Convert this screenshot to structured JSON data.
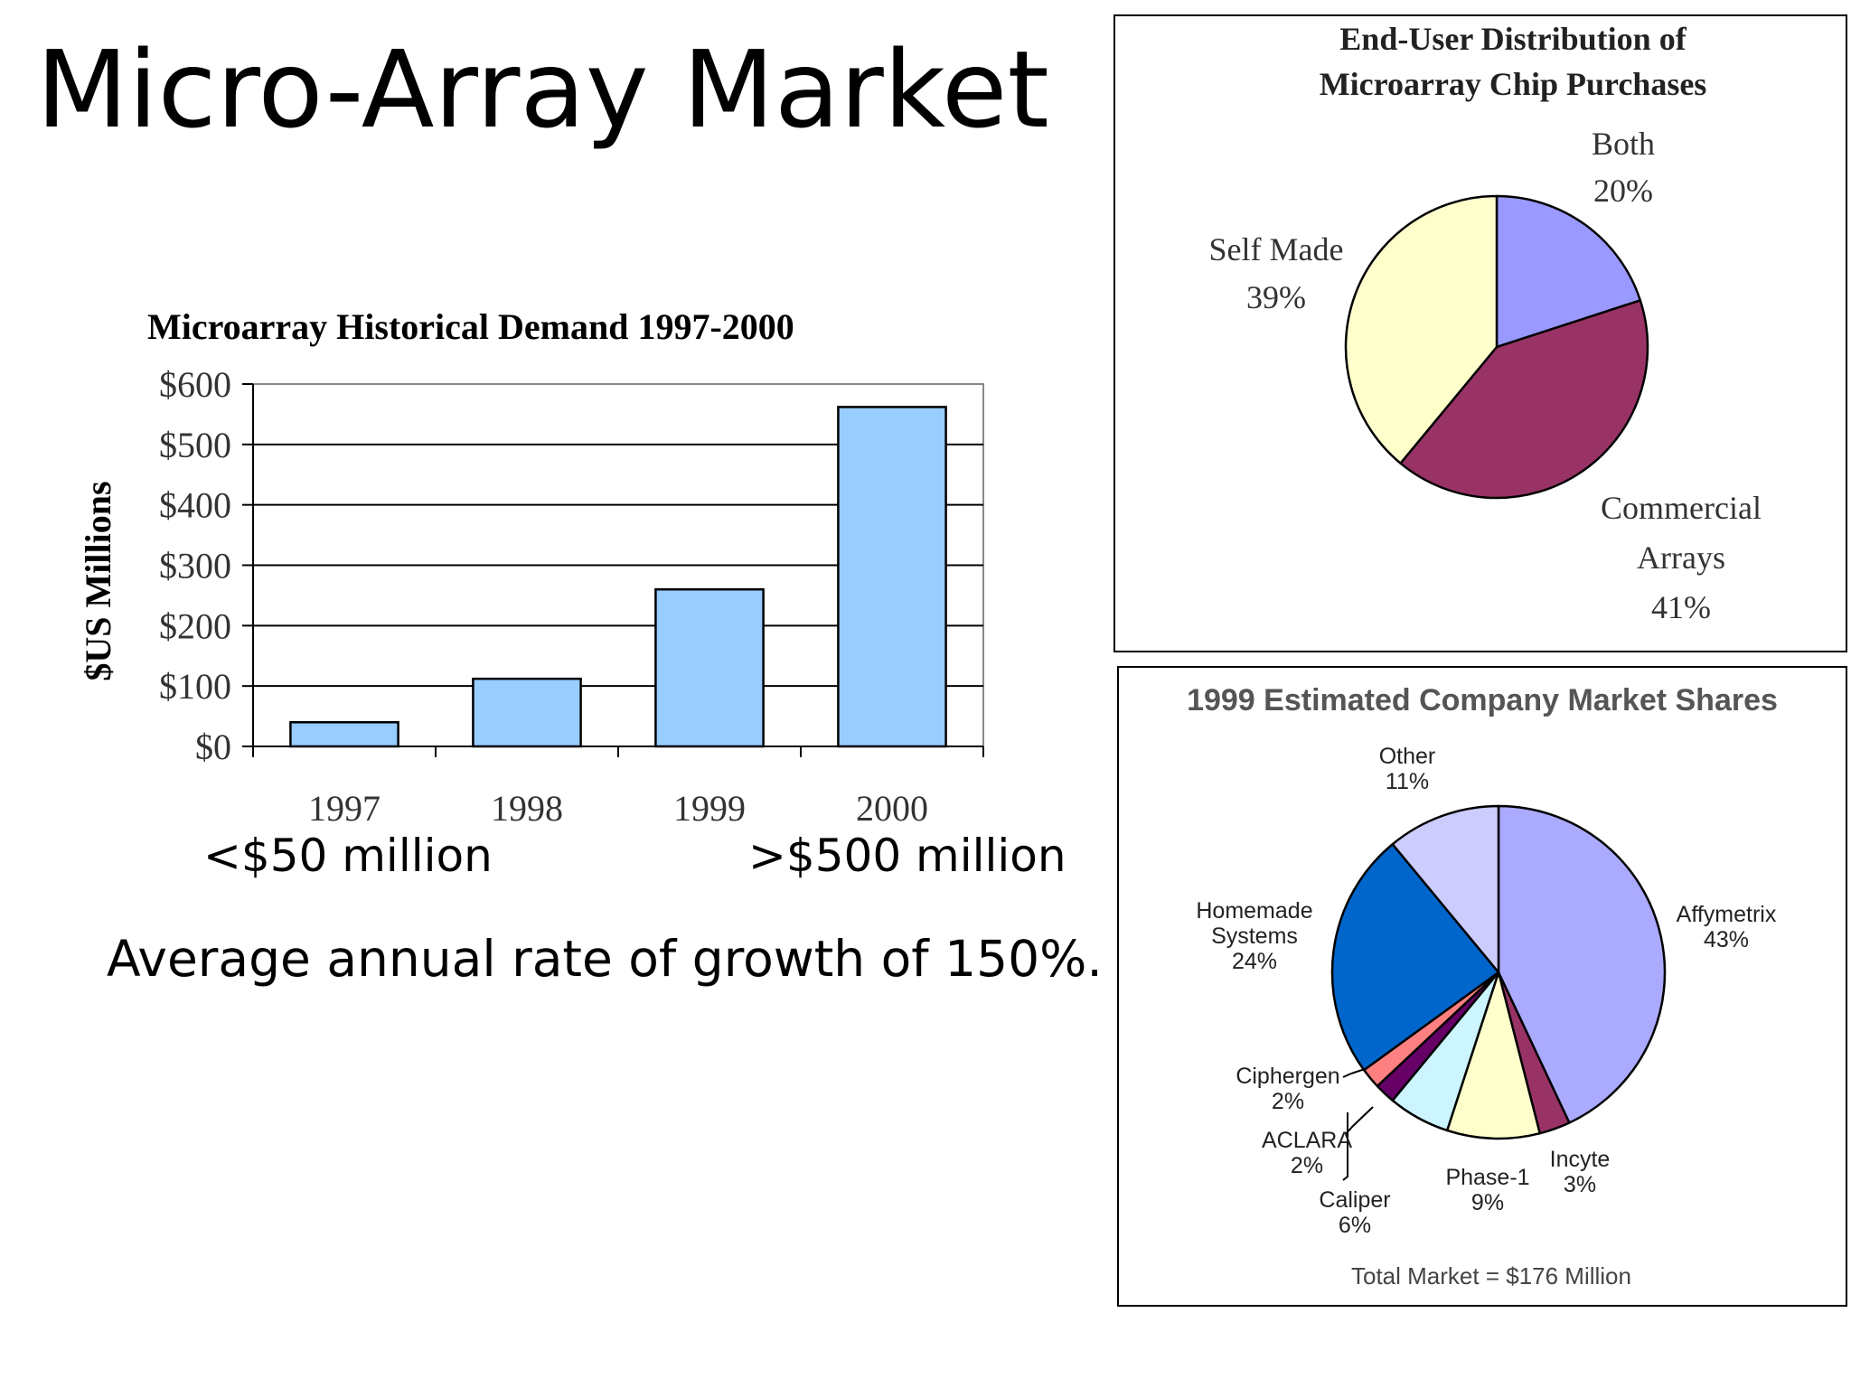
{
  "slide": {
    "title": "Micro-Array Market",
    "range_min_label": "<$50 million",
    "range_max_label": ">$500 million",
    "growth_note": "Average annual rate of growth of 150%."
  },
  "chart_data": [
    {
      "type": "bar",
      "title": "Microarray Historical Demand 1997-2000",
      "xlabel": "",
      "ylabel": "$US Millions",
      "categories": [
        "1997",
        "1998",
        "1999",
        "2000"
      ],
      "values": [
        40,
        112,
        260,
        562
      ],
      "ylim": [
        0,
        600
      ],
      "yticks": [
        "$0",
        "$100",
        "$200",
        "$300",
        "$400",
        "$500",
        "$600"
      ],
      "ytick_values": [
        0,
        100,
        200,
        300,
        400,
        500,
        600
      ],
      "grid": true,
      "bar_color": "#99ccff"
    },
    {
      "type": "pie",
      "title": [
        "End-User Distribution of",
        "Microarray Chip Purchases"
      ],
      "slices": [
        {
          "label": [
            "Both",
            "20%"
          ],
          "value": 20,
          "color": "#9999ff"
        },
        {
          "label": [
            "Commercial",
            "Arrays",
            "41%"
          ],
          "value": 41,
          "color": "#993366"
        },
        {
          "label": [
            "Self Made",
            "39%"
          ],
          "value": 39,
          "color": "#ffffcc"
        }
      ]
    },
    {
      "type": "pie",
      "title": "1999 Estimated Company Market Shares",
      "footer": "Total Market = $176 Million",
      "slices": [
        {
          "label": [
            "Affymetrix",
            "43%"
          ],
          "value": 43,
          "color": "#aaaaff"
        },
        {
          "label": [
            "Incyte",
            "3%"
          ],
          "value": 3,
          "color": "#993366"
        },
        {
          "label": [
            "Phase-1",
            "9%"
          ],
          "value": 9,
          "color": "#ffffcc"
        },
        {
          "label": [
            "Caliper",
            "6%"
          ],
          "value": 6,
          "color": "#ccf5ff"
        },
        {
          "label": [
            "ACLARA",
            "2%"
          ],
          "value": 2,
          "color": "#660066"
        },
        {
          "label": [
            "Ciphergen",
            "2%"
          ],
          "value": 2,
          "color": "#ff8080"
        },
        {
          "label": [
            "Homemade",
            "Systems",
            "24%"
          ],
          "value": 24,
          "color": "#0066cc"
        },
        {
          "label": [
            "Other",
            "11%"
          ],
          "value": 11,
          "color": "#ccccff"
        }
      ]
    }
  ]
}
